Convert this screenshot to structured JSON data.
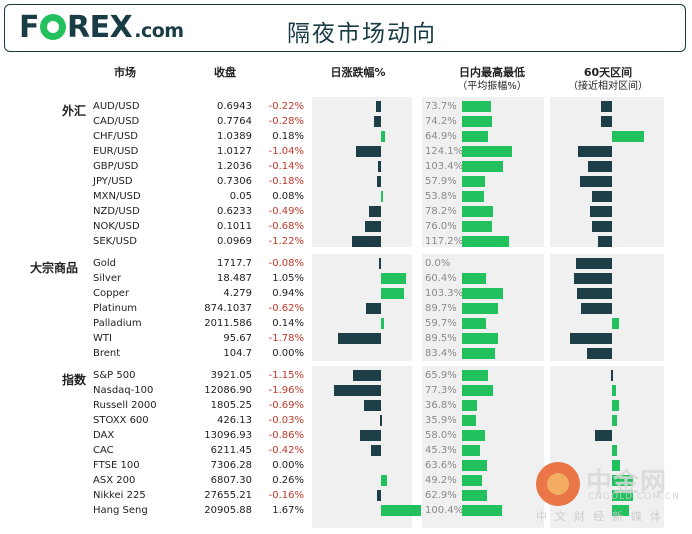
{
  "header": {
    "logo_pre": "F",
    "logo_post": "REX",
    "logo_com": ".com",
    "title": "隔夜市场动向"
  },
  "columns": {
    "market": "市场",
    "close": "收盘",
    "change": "日涨跌幅%",
    "range": "日内最高最低",
    "range_sub": "（平均振幅%）",
    "zone": "60天区间",
    "zone_sub": "（接近相对区间）"
  },
  "colors": {
    "navy": "#1d3d47",
    "green": "#22c15e",
    "negative_text": "#c0392b",
    "panel": "#f0f0f0"
  },
  "chart_data": {
    "type": "bar",
    "title": "隔夜市场动向",
    "series": [
      {
        "name": "日涨跌幅%",
        "unit": "%"
      },
      {
        "name": "日内最高最低（平均振幅%）",
        "unit": "%"
      },
      {
        "name": "60天区间（接近相对区间）",
        "unit": "relative position, -1 to 1"
      }
    ],
    "sections": [
      {
        "label": "外汇",
        "rows": [
          {
            "name": "AUD/USD",
            "close": "0.6943",
            "change": -0.22,
            "change_label": "-0.22%",
            "range": 73.7,
            "range_label": "73.7%",
            "zone": -0.3
          },
          {
            "name": "CAD/USD",
            "close": "0.7764",
            "change": -0.28,
            "change_label": "-0.28%",
            "range": 74.2,
            "range_label": "74.2%",
            "zone": -0.3
          },
          {
            "name": "CHF/USD",
            "close": "1.0389",
            "change": 0.18,
            "change_label": "0.18%",
            "range": 64.9,
            "range_label": "64.9%",
            "zone": 0.85
          },
          {
            "name": "EUR/USD",
            "close": "1.0127",
            "change": -1.04,
            "change_label": "-1.04%",
            "range": 124.1,
            "range_label": "124.1%",
            "zone": -0.9
          },
          {
            "name": "GBP/USD",
            "close": "1.2036",
            "change": -0.14,
            "change_label": "-0.14%",
            "range": 103.4,
            "range_label": "103.4%",
            "zone": -0.62
          },
          {
            "name": "JPY/USD",
            "close": "0.7306",
            "change": -0.18,
            "change_label": "-0.18%",
            "range": 57.9,
            "range_label": "57.9%",
            "zone": -0.85
          },
          {
            "name": "MXN/USD",
            "close": "0.05",
            "change": 0.08,
            "change_label": "0.08%",
            "range": 53.8,
            "range_label": "53.8%",
            "zone": -0.52
          },
          {
            "name": "NZD/USD",
            "close": "0.6233",
            "change": -0.49,
            "change_label": "-0.49%",
            "range": 78.2,
            "range_label": "78.2%",
            "zone": -0.58
          },
          {
            "name": "NOK/USD",
            "close": "0.1011",
            "change": -0.68,
            "change_label": "-0.68%",
            "range": 76.0,
            "range_label": "76.0%",
            "zone": -0.52
          },
          {
            "name": "SEK/USD",
            "close": "0.0969",
            "change": -1.22,
            "change_label": "-1.22%",
            "range": 117.2,
            "range_label": "117.2%",
            "zone": -0.38
          }
        ]
      },
      {
        "label": "大宗商品",
        "rows": [
          {
            "name": "Gold",
            "close": "1717.7",
            "change": -0.08,
            "change_label": "-0.08%",
            "range": 0.0,
            "range_label": "0.0%",
            "zone": -0.95
          },
          {
            "name": "Silver",
            "close": "18.487",
            "change": 1.05,
            "change_label": "1.05%",
            "range": 60.4,
            "range_label": "60.4%",
            "zone": -1.0
          },
          {
            "name": "Copper",
            "close": "4.279",
            "change": 0.94,
            "change_label": "0.94%",
            "range": 103.3,
            "range_label": "103.3%",
            "zone": -0.92
          },
          {
            "name": "Platinum",
            "close": "874.1037",
            "change": -0.62,
            "change_label": "-0.62%",
            "range": 89.7,
            "range_label": "89.7%",
            "zone": -0.82
          },
          {
            "name": "Palladium",
            "close": "2011.586",
            "change": 0.14,
            "change_label": "0.14%",
            "range": 59.7,
            "range_label": "59.7%",
            "zone": 0.18
          },
          {
            "name": "WTI",
            "close": "95.67",
            "change": -1.78,
            "change_label": "-1.78%",
            "range": 89.5,
            "range_label": "89.5%",
            "zone": -1.1
          },
          {
            "name": "Brent",
            "close": "104.7",
            "change": 0.0,
            "change_label": "0.00%",
            "range": 83.4,
            "range_label": "83.4%",
            "zone": -0.65
          }
        ]
      },
      {
        "label": "指数",
        "rows": [
          {
            "name": "S&P 500",
            "close": "3921.05",
            "change": -1.15,
            "change_label": "-1.15%",
            "range": 65.9,
            "range_label": "65.9%",
            "zone": -0.02
          },
          {
            "name": "Nasdaq-100",
            "close": "12086.90",
            "change": -1.96,
            "change_label": "-1.96%",
            "range": 77.3,
            "range_label": "77.3%",
            "zone": 0.1
          },
          {
            "name": "Russell 2000",
            "close": "1805.25",
            "change": -0.69,
            "change_label": "-0.69%",
            "range": 36.8,
            "range_label": "36.8%",
            "zone": 0.18
          },
          {
            "name": "STOXX 600",
            "close": "426.13",
            "change": -0.03,
            "change_label": "-0.03%",
            "range": 35.9,
            "range_label": "35.9%",
            "zone": 0.12
          },
          {
            "name": "DAX",
            "close": "13096.93",
            "change": -0.86,
            "change_label": "-0.86%",
            "range": 58.0,
            "range_label": "58.0%",
            "zone": -0.45
          },
          {
            "name": "CAC",
            "close": "6211.45",
            "change": -0.42,
            "change_label": "-0.42%",
            "range": 45.3,
            "range_label": "45.3%",
            "zone": 0.12
          },
          {
            "name": "FTSE 100",
            "close": "7306.28",
            "change": 0.0,
            "change_label": "0.00%",
            "range": 63.6,
            "range_label": "63.6%",
            "zone": 0.2
          },
          {
            "name": "ASX 200",
            "close": "6807.30",
            "change": 0.26,
            "change_label": "0.26%",
            "range": 49.2,
            "range_label": "49.2%",
            "zone": 0.55
          },
          {
            "name": "Nikkei 225",
            "close": "27655.21",
            "change": -0.16,
            "change_label": "-0.16%",
            "range": 62.9,
            "range_label": "62.9%",
            "zone": 0.55
          },
          {
            "name": "Hang Seng",
            "close": "20905.88",
            "change": 1.67,
            "change_label": "1.67%",
            "range": 100.4,
            "range_label": "100.4%",
            "zone": 0.45
          }
        ]
      }
    ]
  },
  "watermark": {
    "name": "中金网",
    "url": "CNGOLD.COM.CN",
    "slogan": "中文财经新媒体"
  }
}
